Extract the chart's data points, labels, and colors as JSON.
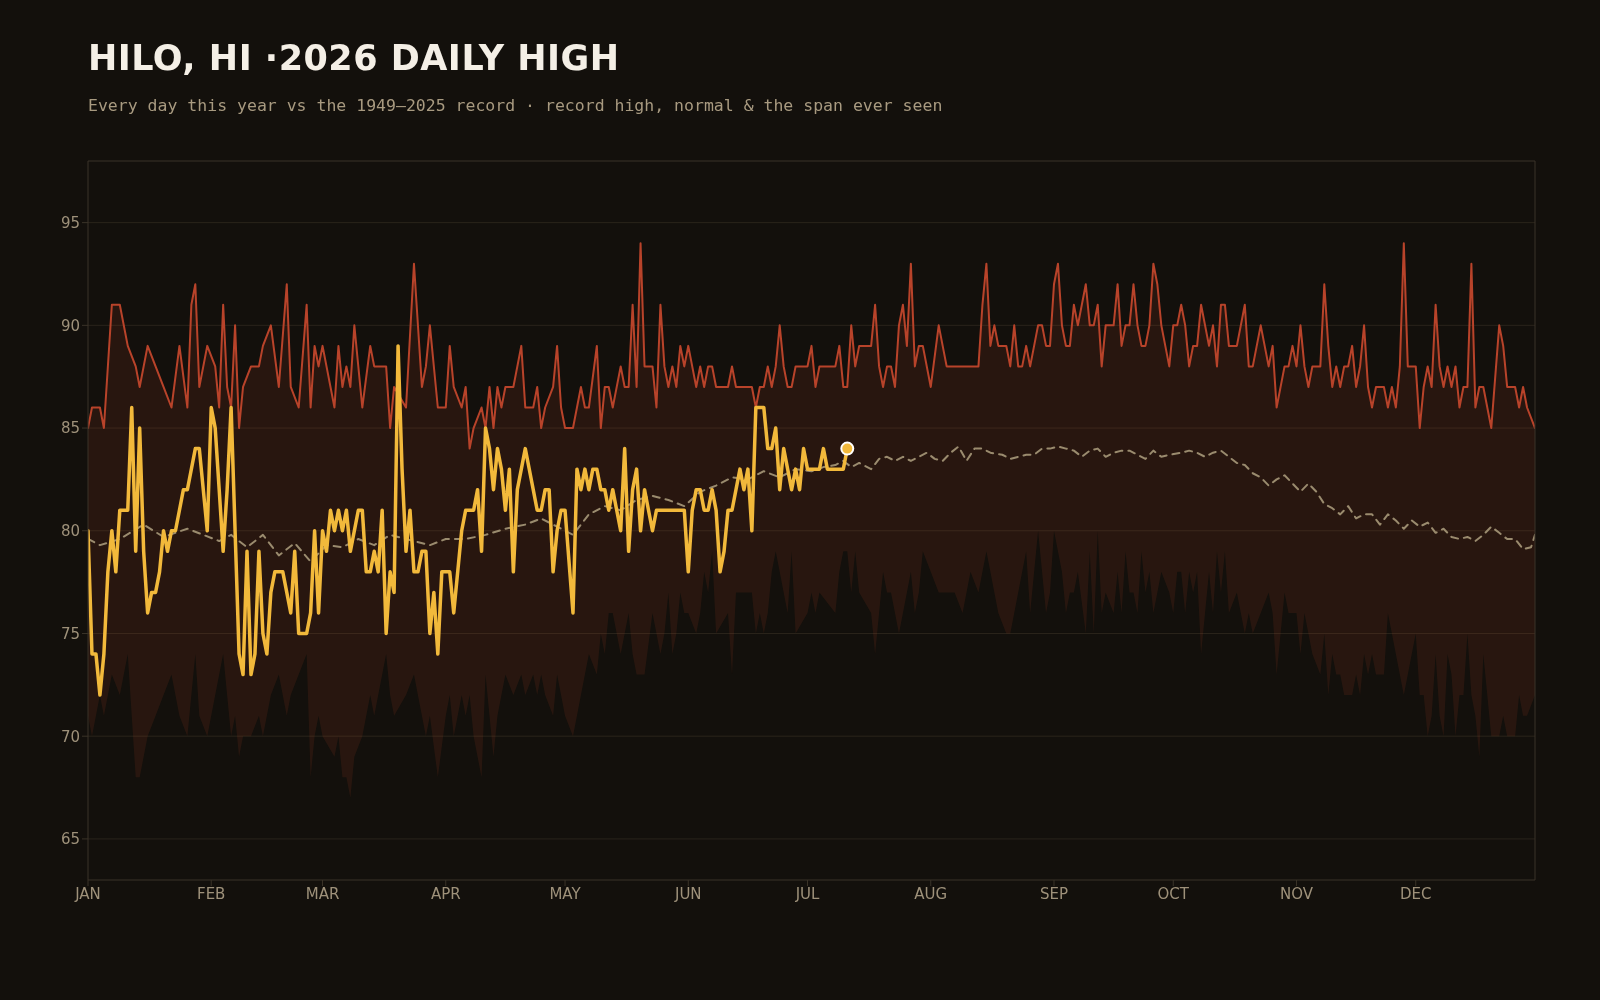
{
  "chart_data": {
    "type": "line",
    "title": "HILO, HI ·2026 DAILY HIGH",
    "subtitle": "Every day this year vs the 1949–2025 record · record high, normal & the span ever seen",
    "xlim": [
      "--01-01",
      "--12-31"
    ],
    "xticks": [
      {
        "value": "--01-01",
        "label": "JAN"
      },
      {
        "value": "--02-01",
        "label": "FEB"
      },
      {
        "value": "--03-01",
        "label": "MAR"
      },
      {
        "value": "--04-01",
        "label": "APR"
      },
      {
        "value": "--05-01",
        "label": "MAY"
      },
      {
        "value": "--06-01",
        "label": "JUN"
      },
      {
        "value": "--07-01",
        "label": "JUL"
      },
      {
        "value": "--08-01",
        "label": "AUG"
      },
      {
        "value": "--09-01",
        "label": "SEP"
      },
      {
        "value": "--10-01",
        "label": "OCT"
      },
      {
        "value": "--11-01",
        "label": "NOV"
      },
      {
        "value": "--12-01",
        "label": "DEC"
      }
    ],
    "ylim": [
      63,
      98
    ],
    "yticks": [
      65,
      70,
      75,
      80,
      85,
      90,
      95
    ],
    "grid": "y",
    "legend": false,
    "marker": "none",
    "series": [
      {
        "color": "#b8432a",
        "x": [
          "--01-01",
          "--01-02",
          "--01-04",
          "--01-05",
          "--01-07",
          "--01-09",
          "--01-11",
          "--01-13",
          "--01-14",
          "--01-16",
          "--01-18",
          "--01-20",
          "--01-22",
          "--01-24",
          "--01-26",
          "--01-27",
          "--01-28",
          "--01-29",
          "--01-31",
          "--02-02",
          "--02-03",
          "--02-04",
          "--02-05",
          "--02-06",
          "--02-07",
          "--02-08",
          "--02-09",
          "--02-11",
          "--02-13",
          "--02-14",
          "--02-16",
          "--02-18",
          "--02-20",
          "--02-21",
          "--02-23",
          "--02-25",
          "--02-26",
          "--02-27",
          "--02-28",
          "--03-01",
          "--03-04",
          "--03-05",
          "--03-06",
          "--03-07",
          "--03-08",
          "--03-09",
          "--03-11",
          "--03-13",
          "--03-14",
          "--03-17",
          "--03-18",
          "--03-19",
          "--03-22",
          "--03-24",
          "--03-26",
          "--03-27",
          "--03-28",
          "--03-30",
          "--04-01",
          "--04-02",
          "--04-03",
          "--04-05",
          "--04-06",
          "--04-07",
          "--04-08",
          "--04-10",
          "--04-11",
          "--04-12",
          "--04-13",
          "--04-14",
          "--04-15",
          "--04-16",
          "--04-18",
          "--04-20",
          "--04-21",
          "--04-23",
          "--04-24",
          "--04-25",
          "--04-26",
          "--04-28",
          "--04-29",
          "--04-30",
          "--05-01",
          "--05-03",
          "--05-05",
          "--05-06",
          "--05-07",
          "--05-09",
          "--05-10",
          "--05-11",
          "--05-12",
          "--05-13",
          "--05-15",
          "--05-16",
          "--05-17",
          "--05-18",
          "--05-19",
          "--05-20",
          "--05-21",
          "--05-23",
          "--05-24",
          "--05-25",
          "--05-26",
          "--05-27",
          "--05-28",
          "--05-29",
          "--05-30",
          "--05-31",
          "--06-01",
          "--06-03",
          "--06-04",
          "--06-05",
          "--06-06",
          "--06-07",
          "--06-08",
          "--06-11",
          "--06-12",
          "--06-13",
          "--06-17",
          "--06-18",
          "--06-19",
          "--06-20",
          "--06-21",
          "--06-22",
          "--06-23",
          "--06-24",
          "--06-25",
          "--06-26",
          "--06-27",
          "--06-28",
          "--07-01",
          "--07-02",
          "--07-03",
          "--07-04",
          "--07-08",
          "--07-09",
          "--07-10",
          "--07-11",
          "--07-12",
          "--07-13",
          "--07-14",
          "--07-17",
          "--07-18",
          "--07-19",
          "--07-20",
          "--07-21",
          "--07-22",
          "--07-23",
          "--07-24",
          "--07-25",
          "--07-26",
          "--07-27",
          "--07-28",
          "--07-29",
          "--07-30",
          "--08-01",
          "--08-03",
          "--08-05",
          "--08-07",
          "--08-09",
          "--08-11",
          "--08-13",
          "--08-14",
          "--08-15",
          "--08-16",
          "--08-17",
          "--08-18",
          "--08-20",
          "--08-21",
          "--08-22",
          "--08-23",
          "--08-24",
          "--08-25",
          "--08-26",
          "--08-28",
          "--08-29",
          "--08-30",
          "--08-31",
          "--09-01",
          "--09-02",
          "--09-03",
          "--09-04",
          "--09-05",
          "--09-06",
          "--09-07",
          "--09-09",
          "--09-10",
          "--09-11",
          "--09-12",
          "--09-13",
          "--09-14",
          "--09-16",
          "--09-17",
          "--09-18",
          "--09-19",
          "--09-20",
          "--09-21",
          "--09-22",
          "--09-23",
          "--09-24",
          "--09-25",
          "--09-26",
          "--09-27",
          "--09-28",
          "--09-30",
          "--10-01",
          "--10-02",
          "--10-03",
          "--10-04",
          "--10-05",
          "--10-06",
          "--10-07",
          "--10-08",
          "--10-10",
          "--10-11",
          "--10-12",
          "--10-13",
          "--10-14",
          "--10-15",
          "--10-17",
          "--10-19",
          "--10-20",
          "--10-21",
          "--10-23",
          "--10-25",
          "--10-26",
          "--10-27",
          "--10-29",
          "--10-30",
          "--10-31",
          "--11-01",
          "--11-02",
          "--11-03",
          "--11-04",
          "--11-05",
          "--11-07",
          "--11-08",
          "--11-09",
          "--11-10",
          "--11-11",
          "--11-12",
          "--11-13",
          "--11-14",
          "--11-15",
          "--11-16",
          "--11-17",
          "--11-18",
          "--11-19",
          "--11-20",
          "--11-21",
          "--11-23",
          "--11-24",
          "--11-25",
          "--11-26",
          "--11-27",
          "--11-28",
          "--11-29",
          "--12-01",
          "--12-02",
          "--12-03",
          "--12-04",
          "--12-05",
          "--12-06",
          "--12-07",
          "--12-08",
          "--12-09",
          "--12-10",
          "--12-11",
          "--12-12",
          "--12-13",
          "--12-14",
          "--12-15",
          "--12-16",
          "--12-17",
          "--12-18",
          "--12-20",
          "--12-22",
          "--12-23",
          "--12-24",
          "--12-26",
          "--12-27",
          "--12-28",
          "--12-29",
          "--12-31"
        ],
        "values": [
          85,
          86,
          86,
          85,
          91,
          91,
          89,
          88,
          87,
          89,
          88,
          87,
          86,
          89,
          86,
          91,
          92,
          87,
          89,
          88,
          86,
          91,
          87,
          86,
          90,
          85,
          87,
          88,
          88,
          89,
          90,
          87,
          92,
          87,
          86,
          91,
          86,
          89,
          88,
          89,
          86,
          89,
          87,
          88,
          87,
          90,
          86,
          89,
          88,
          88,
          85,
          87,
          86,
          93,
          87,
          88,
          90,
          86,
          86,
          89,
          87,
          86,
          87,
          84,
          85,
          86,
          85,
          87,
          85,
          87,
          86,
          87,
          87,
          89,
          86,
          86,
          87,
          85,
          86,
          87,
          89,
          86,
          85,
          85,
          87,
          86,
          86,
          89,
          85,
          87,
          87,
          86,
          88,
          87,
          87,
          91,
          87,
          94,
          88,
          88,
          86,
          91,
          88,
          87,
          88,
          87,
          89,
          88,
          89,
          87,
          88,
          87,
          88,
          88,
          87,
          87,
          88,
          87,
          87,
          86,
          87,
          87,
          88,
          87,
          88,
          90,
          88,
          87,
          87,
          88,
          88,
          89,
          87,
          88,
          88,
          89,
          87,
          87,
          90,
          88,
          89,
          89,
          91,
          88,
          87,
          88,
          88,
          87,
          90,
          91,
          89,
          93,
          88,
          89,
          89,
          87,
          90,
          88,
          88,
          88,
          88,
          88,
          91,
          93,
          89,
          90,
          89,
          89,
          88,
          90,
          88,
          88,
          89,
          88,
          90,
          90,
          89,
          89,
          92,
          93,
          90,
          89,
          89,
          91,
          90,
          92,
          90,
          90,
          91,
          88,
          90,
          90,
          92,
          89,
          90,
          90,
          92,
          90,
          89,
          89,
          90,
          93,
          92,
          90,
          88,
          90,
          90,
          91,
          90,
          88,
          89,
          89,
          91,
          89,
          90,
          88,
          91,
          91,
          89,
          89,
          91,
          88,
          88,
          90,
          88,
          89,
          86,
          88,
          88,
          89,
          88,
          90,
          88,
          87,
          88,
          88,
          92,
          89,
          87,
          88,
          87,
          88,
          88,
          89,
          87,
          88,
          90,
          87,
          86,
          87,
          87,
          86,
          87,
          86,
          88,
          94,
          88,
          88,
          85,
          87,
          88,
          87,
          91,
          88,
          87,
          88,
          87,
          88,
          86,
          87,
          87,
          93,
          86,
          87,
          87,
          85,
          90,
          89,
          87,
          87,
          86,
          87,
          86,
          85
        ],
        "upper": [
          85,
          86,
          86,
          85,
          91,
          91,
          89,
          88,
          87,
          89,
          88,
          87,
          86,
          89,
          86,
          91,
          92,
          87,
          89,
          88,
          86,
          91,
          87,
          86,
          90,
          85,
          87,
          88,
          88,
          89,
          90,
          87,
          92,
          87,
          86,
          91,
          86,
          89,
          88,
          89,
          86,
          89,
          87,
          88,
          87,
          90,
          86,
          89,
          88,
          88,
          85,
          87,
          86,
          93,
          87,
          88,
          90,
          86,
          86,
          89,
          87,
          86,
          87,
          84,
          85,
          86,
          85,
          87,
          85,
          87,
          86,
          87,
          87,
          89,
          86,
          86,
          87,
          85,
          86,
          87,
          89,
          86,
          85,
          85,
          87,
          86,
          86,
          89,
          85,
          87,
          87,
          86,
          88,
          87,
          87,
          91,
          87,
          94,
          88,
          88,
          86,
          91,
          88,
          87,
          88,
          87,
          89,
          88,
          89,
          87,
          88,
          87,
          88,
          88,
          87,
          87,
          88,
          87,
          87,
          86,
          87,
          87,
          88,
          87,
          88,
          90,
          88,
          87,
          87,
          88,
          88,
          89,
          87,
          88,
          88,
          89,
          87,
          87,
          90,
          88,
          89,
          89,
          91,
          88,
          87,
          88,
          88,
          87,
          90,
          91,
          89,
          93,
          88,
          89,
          89,
          87,
          90,
          88,
          88,
          88,
          88,
          88,
          91,
          93,
          89,
          90,
          89,
          89,
          88,
          90,
          88,
          88,
          89,
          88,
          90,
          90,
          89,
          89,
          92,
          93,
          90,
          89,
          89,
          91,
          90,
          92,
          90,
          90,
          91,
          88,
          90,
          90,
          92,
          89,
          90,
          90,
          92,
          90,
          89,
          89,
          90,
          93,
          92,
          90,
          88,
          90,
          90,
          91,
          90,
          88,
          89,
          89,
          91,
          89,
          90,
          88,
          91,
          91,
          89,
          89,
          91,
          88,
          88,
          90,
          88,
          89,
          86,
          88,
          88,
          89,
          88,
          90,
          88,
          87,
          88,
          88,
          92,
          89,
          87,
          88,
          87,
          88,
          88,
          89,
          87,
          88,
          90,
          87,
          86,
          87,
          87,
          86,
          87,
          86,
          88,
          94,
          88,
          88,
          85,
          87,
          88,
          87,
          91,
          88,
          87,
          88,
          87,
          88,
          86,
          87,
          87,
          93,
          86,
          87,
          87,
          85,
          90,
          89,
          87,
          87,
          86,
          87,
          86,
          85
        ],
        "lower": [
          71,
          70,
          72,
          71,
          73,
          72,
          74,
          68,
          68,
          70,
          71,
          72,
          73,
          71,
          70,
          72,
          74,
          71,
          70,
          72,
          73,
          74,
          72,
          70,
          71,
          69,
          70,
          70,
          71,
          70,
          72,
          73,
          71,
          72,
          73,
          74,
          68,
          70,
          71,
          70,
          69,
          70,
          68,
          68,
          67,
          69,
          70,
          72,
          71,
          74,
          72,
          71,
          72,
          73,
          71,
          70,
          71,
          68,
          71,
          72,
          70,
          72,
          71,
          72,
          70,
          68,
          73,
          71,
          69,
          71,
          72,
          73,
          72,
          73,
          72,
          73,
          72,
          73,
          72,
          71,
          73,
          72,
          71,
          70,
          72,
          73,
          74,
          73,
          75,
          74,
          76,
          76,
          74,
          75,
          76,
          74,
          73,
          73,
          73,
          76,
          75,
          74,
          75,
          77,
          74,
          75,
          77,
          76,
          76,
          75,
          76,
          78,
          77,
          79,
          75,
          76,
          73,
          77,
          77,
          75,
          76,
          75,
          76,
          78,
          79,
          78,
          77,
          76,
          79,
          75,
          76,
          77,
          76,
          77,
          76,
          78,
          79,
          79,
          77,
          79,
          77,
          76,
          74,
          76,
          78,
          77,
          77,
          76,
          75,
          76,
          77,
          78,
          76,
          77,
          79,
          78,
          77,
          77,
          77,
          76,
          78,
          77,
          78,
          79,
          78,
          77,
          76,
          75,
          75,
          76,
          77,
          78,
          79,
          76,
          80,
          78,
          76,
          77,
          80,
          79,
          78,
          76,
          77,
          77,
          78,
          75,
          79,
          75,
          80,
          76,
          77,
          76,
          78,
          76,
          79,
          77,
          77,
          76,
          79,
          77,
          78,
          76,
          77,
          78,
          77,
          76,
          78,
          78,
          76,
          78,
          77,
          78,
          74,
          78,
          76,
          79,
          77,
          79,
          76,
          77,
          75,
          76,
          75,
          76,
          77,
          76,
          73,
          77,
          76,
          76,
          76,
          74,
          76,
          75,
          74,
          73,
          75,
          72,
          74,
          73,
          73,
          72,
          72,
          72,
          73,
          72,
          74,
          73,
          74,
          73,
          73,
          76,
          75,
          74,
          73,
          72,
          73,
          75,
          72,
          72,
          70,
          71,
          74,
          71,
          70,
          74,
          73,
          70,
          72,
          72,
          75,
          72,
          71,
          69,
          74,
          70,
          70,
          71,
          70,
          70,
          72,
          71,
          71,
          72
        ]
      },
      {
        "color": "#9a8b6e",
        "line_style": "dashed",
        "x": [
          "--01-01",
          "--01-04",
          "--01-09",
          "--01-15",
          "--01-20",
          "--01-26",
          "--02-03",
          "--02-06",
          "--02-10",
          "--02-14",
          "--02-18",
          "--02-22",
          "--02-26",
          "--03-02",
          "--03-06",
          "--03-10",
          "--03-14",
          "--03-18",
          "--03-22",
          "--03-28",
          "--04-01",
          "--04-06",
          "--04-11",
          "--04-16",
          "--04-21",
          "--04-25",
          "--04-29",
          "--05-03",
          "--05-07",
          "--05-11",
          "--05-15",
          "--05-19",
          "--05-23",
          "--05-27",
          "--05-31",
          "--06-04",
          "--06-08",
          "--06-12",
          "--06-16",
          "--06-20",
          "--06-24",
          "--06-28",
          "--07-02",
          "--07-05",
          "--07-08",
          "--07-10",
          "--07-12",
          "--07-14",
          "--07-17",
          "--07-19",
          "--07-21",
          "--07-23",
          "--07-25",
          "--07-27",
          "--07-29",
          "--07-31",
          "--08-02",
          "--08-04",
          "--08-06",
          "--08-08",
          "--08-10",
          "--08-12",
          "--08-14",
          "--08-16",
          "--08-19",
          "--08-21",
          "--08-23",
          "--08-25",
          "--08-27",
          "--08-29",
          "--08-31",
          "--09-02",
          "--09-04",
          "--09-06",
          "--09-08",
          "--09-10",
          "--09-12",
          "--09-14",
          "--09-16",
          "--09-18",
          "--09-20",
          "--09-22",
          "--09-24",
          "--09-26",
          "--09-28",
          "--09-30",
          "--10-03",
          "--10-05",
          "--10-07",
          "--10-09",
          "--10-11",
          "--10-13",
          "--10-15",
          "--10-17",
          "--10-19",
          "--10-21",
          "--10-23",
          "--10-25",
          "--10-27",
          "--10-29",
          "--10-31",
          "--11-02",
          "--11-04",
          "--11-06",
          "--11-08",
          "--11-10",
          "--11-12",
          "--11-14",
          "--11-16",
          "--11-18",
          "--11-20",
          "--11-22",
          "--11-24",
          "--11-26",
          "--11-28",
          "--11-30",
          "--12-02",
          "--12-04",
          "--12-06",
          "--12-08",
          "--12-10",
          "--12-12",
          "--12-14",
          "--12-16",
          "--12-18",
          "--12-20",
          "--12-22",
          "--12-24",
          "--12-26",
          "--12-28",
          "--12-30",
          "--12-31"
        ],
        "values": [
          79.6,
          79.3,
          79.6,
          80.3,
          79.7,
          80.1,
          79.5,
          79.8,
          79.2,
          79.8,
          78.8,
          79.4,
          78.5,
          79.3,
          79.2,
          79.6,
          79.3,
          79.8,
          79.6,
          79.3,
          79.6,
          79.6,
          79.8,
          80.1,
          80.3,
          80.6,
          80.2,
          79.8,
          80.8,
          81.2,
          81.0,
          81.5,
          81.7,
          81.5,
          81.2,
          81.9,
          82.2,
          82.6,
          82.5,
          82.9,
          82.6,
          83.0,
          82.9,
          83.1,
          83.2,
          83.4,
          83.1,
          83.3,
          83.0,
          83.5,
          83.6,
          83.4,
          83.6,
          83.4,
          83.6,
          83.8,
          83.5,
          83.4,
          83.8,
          84.1,
          83.4,
          84.0,
          84.0,
          83.8,
          83.7,
          83.5,
          83.6,
          83.7,
          83.7,
          84.0,
          84.0,
          84.1,
          84.0,
          83.9,
          83.6,
          83.9,
          84.0,
          83.6,
          83.8,
          83.9,
          83.9,
          83.7,
          83.5,
          83.9,
          83.6,
          83.7,
          83.8,
          83.9,
          83.8,
          83.6,
          83.8,
          83.9,
          83.6,
          83.3,
          83.2,
          82.8,
          82.6,
          82.2,
          82.5,
          82.7,
          82.3,
          81.9,
          82.3,
          81.9,
          81.3,
          81.1,
          80.8,
          81.2,
          80.6,
          80.8,
          80.8,
          80.3,
          80.8,
          80.5,
          80.1,
          80.5,
          80.2,
          80.4,
          79.9,
          80.1,
          79.7,
          79.6,
          79.7,
          79.5,
          79.8,
          80.2,
          79.9,
          79.6,
          79.6,
          79.1,
          79.2,
          79.8
        ]
      },
      {
        "color": "#f2b93b",
        "x": [
          "--01-01",
          "--01-02",
          "--01-03",
          "--01-04",
          "--01-05",
          "--01-06",
          "--01-07",
          "--01-08",
          "--01-09",
          "--01-11",
          "--01-12",
          "--01-13",
          "--01-14",
          "--01-15",
          "--01-16",
          "--01-17",
          "--01-18",
          "--01-19",
          "--01-20",
          "--01-21",
          "--01-22",
          "--01-23",
          "--01-25",
          "--01-26",
          "--01-28",
          "--01-29",
          "--01-31",
          "--02-01",
          "--02-02",
          "--02-03",
          "--02-04",
          "--02-05",
          "--02-06",
          "--02-08",
          "--02-09",
          "--02-10",
          "--02-11",
          "--02-12",
          "--02-13",
          "--02-14",
          "--02-15",
          "--02-16",
          "--02-17",
          "--02-19",
          "--02-21",
          "--02-22",
          "--02-23",
          "--02-25",
          "--02-26",
          "--02-27",
          "--02-28",
          "--03-01",
          "--03-02",
          "--03-03",
          "--03-04",
          "--03-05",
          "--03-06",
          "--03-07",
          "--03-08",
          "--03-10",
          "--03-11",
          "--03-12",
          "--03-13",
          "--03-14",
          "--03-15",
          "--03-16",
          "--03-17",
          "--03-18",
          "--03-19",
          "--03-20",
          "--03-21",
          "--03-22",
          "--03-23",
          "--03-24",
          "--03-25",
          "--03-26",
          "--03-27",
          "--03-28",
          "--03-29",
          "--03-30",
          "--03-31",
          "--04-02",
          "--04-03",
          "--04-05",
          "--04-06",
          "--04-08",
          "--04-09",
          "--04-10",
          "--04-11",
          "--04-12",
          "--04-13",
          "--04-14",
          "--04-15",
          "--04-16",
          "--04-17",
          "--04-18",
          "--04-19",
          "--04-21",
          "--04-23",
          "--04-24",
          "--04-25",
          "--04-26",
          "--04-27",
          "--04-28",
          "--04-29",
          "--04-30",
          "--05-01",
          "--05-03",
          "--05-04",
          "--05-05",
          "--05-06",
          "--05-07",
          "--05-08",
          "--05-09",
          "--05-10",
          "--05-11",
          "--05-12",
          "--05-13",
          "--05-14",
          "--05-15",
          "--05-16",
          "--05-17",
          "--05-18",
          "--05-19",
          "--05-20",
          "--05-21",
          "--05-23",
          "--05-24",
          "--05-31",
          "--06-01",
          "--06-02",
          "--06-03",
          "--06-04",
          "--06-05",
          "--06-06",
          "--06-07",
          "--06-08",
          "--06-09",
          "--06-10",
          "--06-11",
          "--06-12",
          "--06-14",
          "--06-15",
          "--06-16",
          "--06-17",
          "--06-18",
          "--06-20",
          "--06-21",
          "--06-22",
          "--06-23",
          "--06-24",
          "--06-25",
          "--06-26",
          "--06-27",
          "--06-28",
          "--06-29",
          "--06-30",
          "--07-01",
          "--07-04",
          "--07-05",
          "--07-06",
          "--07-10",
          "--07-11"
        ],
        "values": [
          80,
          74,
          74,
          72,
          74,
          78,
          80,
          78,
          81,
          81,
          86,
          79,
          85,
          79,
          76,
          77,
          77,
          78,
          80,
          79,
          80,
          80,
          82,
          82,
          84,
          84,
          80,
          86,
          85,
          82,
          79,
          82,
          86,
          74,
          73,
          79,
          73,
          74,
          79,
          75,
          74,
          77,
          78,
          78,
          76,
          79,
          75,
          75,
          76,
          80,
          76,
          80,
          79,
          81,
          80,
          81,
          80,
          81,
          79,
          81,
          81,
          78,
          78,
          79,
          78,
          81,
          75,
          78,
          77,
          89,
          83,
          79,
          81,
          78,
          78,
          79,
          79,
          75,
          77,
          74,
          78,
          78,
          76,
          80,
          81,
          81,
          82,
          79,
          85,
          84,
          82,
          84,
          83,
          81,
          83,
          78,
          82,
          84,
          82,
          81,
          81,
          82,
          82,
          78,
          80,
          81,
          81,
          76,
          83,
          82,
          83,
          82,
          83,
          83,
          82,
          82,
          81,
          82,
          81,
          80,
          84,
          79,
          82,
          83,
          80,
          82,
          80,
          81,
          81,
          78,
          81,
          82,
          82,
          81,
          81,
          82,
          81,
          78,
          79,
          81,
          81,
          83,
          82,
          83,
          80,
          86,
          86,
          84,
          84,
          85,
          82,
          84,
          83,
          82,
          83,
          82,
          84,
          83,
          83,
          84,
          83,
          83,
          84
        ]
      }
    ]
  }
}
